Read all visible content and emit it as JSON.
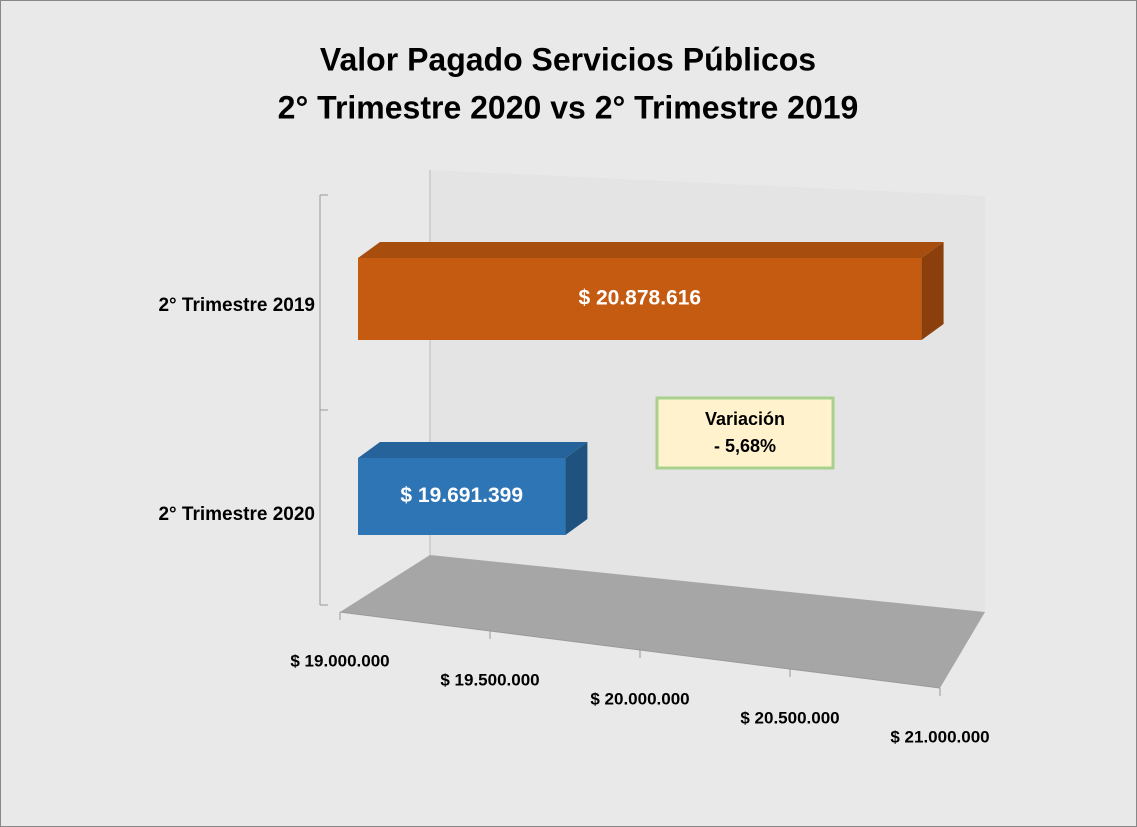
{
  "chart_data": {
    "type": "bar3d",
    "title": [
      "Valor Pagado Servicios Públicos",
      "2° Trimestre 2020 vs 2° Trimestre 2019"
    ],
    "categories": [
      "2° Trimestre 2019",
      "2° Trimestre 2020"
    ],
    "values": [
      20878616,
      19691399
    ],
    "value_labels": [
      "$ 20.878.616",
      "$ 19.691.399"
    ],
    "colors": [
      "#c55a11",
      "#2e75b6"
    ],
    "xlim": [
      19000000,
      21000000
    ],
    "xticks": [
      {
        "value": 19000000,
        "label": "$ 19.000.000"
      },
      {
        "value": 19500000,
        "label": "$ 19.500.000"
      },
      {
        "value": 20000000,
        "label": "$ 20.000.000"
      },
      {
        "value": 20500000,
        "label": "$ 20.500.000"
      },
      {
        "value": 21000000,
        "label": "$ 21.000.000"
      }
    ],
    "annotation": [
      "Variación",
      "- 5,68%"
    ]
  }
}
